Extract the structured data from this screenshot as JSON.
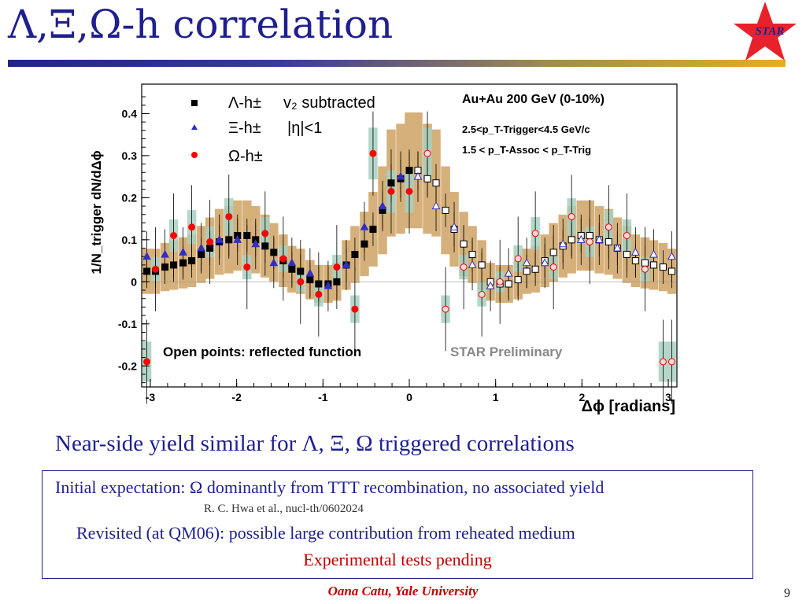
{
  "slide": {
    "title": "Λ,Ξ,Ω-h correlation",
    "logo_text": "STAR",
    "headline": "Near-side yield similar for Λ, Ξ, Ω triggered correlations",
    "box": {
      "line1": "Initial expectation: Ω dominantly from TTT recombination, no associated yield",
      "line2": "R. C. Hwa et al., nucl-th/0602024",
      "line3": "Revisited (at QM06): possible large contribution from reheated medium",
      "line4": "Experimental tests pending"
    },
    "footer": "Oana Catu, Yale University",
    "page_number": "9"
  },
  "colors": {
    "title": "#1f1f8f",
    "lambda": "#000000",
    "xi": "#3030c0",
    "omega": "#ff0000",
    "syst_band": "#d6b07a",
    "omega_syst": "#a8d0c0",
    "accent_red": "#c00000",
    "logo_star": "#e8212a"
  },
  "chart_data": {
    "type": "scatter",
    "ylabel": "1/N_trigger dN/dΔϕ",
    "xlabel": "Δϕ [radians]",
    "xlim": [
      -3.1,
      3.1
    ],
    "ylim": [
      -0.25,
      0.47
    ],
    "x_ticks": [
      -3,
      -2,
      -1,
      0,
      1,
      2,
      3
    ],
    "y_ticks": [
      -0.2,
      -0.1,
      0,
      0.1,
      0.2,
      0.3,
      0.4
    ],
    "y_tick_labels": [
      "-0.2",
      "-0.1",
      "0",
      "0.1",
      "0.2",
      "0.3",
      "0.4"
    ],
    "legend": [
      {
        "label": "Λ-h±",
        "marker": "square"
      },
      {
        "label": "Ξ-h±",
        "marker": "triangle"
      },
      {
        "label": "Ω-h±",
        "marker": "circle"
      }
    ],
    "annotations": {
      "v2": "v₂ subtracted",
      "eta": "|η|<1",
      "system": "Au+Au  200 GeV (0-10%)",
      "trig": "2.5<p_T-Trigger<4.5 GeV/c",
      "assoc": "1.5 < p_T-Assoc < p_T-Trig",
      "open_points": "Open points: reflected function",
      "preliminary": "STAR Preliminary"
    },
    "series": [
      {
        "name": "Λ-h±",
        "x": [
          -3.04,
          -2.94,
          -2.83,
          -2.73,
          -2.62,
          -2.52,
          -2.41,
          -2.31,
          -2.2,
          -2.09,
          -1.99,
          -1.88,
          -1.78,
          -1.67,
          -1.57,
          -1.46,
          -1.36,
          -1.26,
          -1.15,
          -1.05,
          -0.94,
          -0.84,
          -0.73,
          -0.63,
          -0.52,
          -0.42,
          -0.31,
          -0.21,
          -0.1,
          0.0,
          0.1,
          0.21,
          0.31,
          0.42,
          0.52,
          0.63,
          0.73,
          0.84,
          0.94,
          1.05,
          1.15,
          1.26,
          1.36,
          1.46,
          1.57,
          1.67,
          1.78,
          1.88,
          1.99,
          2.09,
          2.2,
          2.31,
          2.41,
          2.52,
          2.62,
          2.73,
          2.83,
          2.94,
          3.04
        ],
        "y": [
          0.025,
          0.025,
          0.035,
          0.04,
          0.045,
          0.05,
          0.065,
          0.08,
          0.095,
          0.1,
          0.11,
          0.11,
          0.1,
          0.085,
          0.07,
          0.05,
          0.03,
          0.025,
          0.005,
          -0.005,
          -0.005,
          0.0,
          0.04,
          0.065,
          0.09,
          0.125,
          0.17,
          0.235,
          0.245,
          0.265,
          0.265,
          0.245,
          0.235,
          0.17,
          0.125,
          0.09,
          0.065,
          0.04,
          0.0,
          -0.005,
          -0.005,
          0.005,
          0.025,
          0.03,
          0.05,
          0.07,
          0.085,
          0.1,
          0.11,
          0.11,
          0.1,
          0.095,
          0.08,
          0.065,
          0.05,
          0.045,
          0.04,
          0.035,
          0.025
        ],
        "err": [
          0.04,
          0.04,
          0.04,
          0.04,
          0.04,
          0.04,
          0.04,
          0.04,
          0.04,
          0.04,
          0.04,
          0.04,
          0.04,
          0.04,
          0.04,
          0.04,
          0.04,
          0.04,
          0.04,
          0.04,
          0.04,
          0.04,
          0.04,
          0.04,
          0.04,
          0.04,
          0.045,
          0.045,
          0.045,
          0.045,
          0.045,
          0.045,
          0.045,
          0.04,
          0.04,
          0.04,
          0.04,
          0.04,
          0.04,
          0.04,
          0.04,
          0.04,
          0.04,
          0.04,
          0.04,
          0.04,
          0.04,
          0.04,
          0.04,
          0.04,
          0.04,
          0.04,
          0.04,
          0.04,
          0.04,
          0.04,
          0.04,
          0.04,
          0.04
        ]
      },
      {
        "name": "Ξ-h±",
        "x": [
          -3.04,
          -2.83,
          -2.62,
          -2.41,
          -2.2,
          -1.99,
          -1.78,
          -1.57,
          -1.36,
          -1.15,
          -0.94,
          -0.73,
          -0.52,
          -0.31,
          -0.1,
          0.1,
          0.31,
          0.52,
          0.73,
          0.94,
          1.15,
          1.36,
          1.57,
          1.78,
          1.99,
          2.2,
          2.41,
          2.62,
          2.83,
          3.04
        ],
        "y": [
          0.06,
          0.065,
          0.07,
          0.08,
          0.1,
          0.1,
          0.09,
          0.045,
          0.045,
          0.02,
          -0.01,
          0.04,
          0.13,
          0.18,
          0.25,
          0.25,
          0.18,
          0.13,
          0.04,
          -0.01,
          0.02,
          0.045,
          0.045,
          0.09,
          0.1,
          0.1,
          0.08,
          0.07,
          0.065,
          0.06
        ],
        "err": [
          0.06,
          0.06,
          0.06,
          0.06,
          0.06,
          0.06,
          0.06,
          0.06,
          0.06,
          0.06,
          0.06,
          0.06,
          0.06,
          0.06,
          0.06,
          0.06,
          0.06,
          0.06,
          0.06,
          0.06,
          0.06,
          0.06,
          0.06,
          0.06,
          0.06,
          0.06,
          0.06,
          0.06,
          0.06,
          0.06
        ]
      },
      {
        "name": "Ω-h±",
        "x": [
          -3.04,
          -2.94,
          -2.73,
          -2.52,
          -2.31,
          -2.09,
          -1.88,
          -1.67,
          -1.46,
          -1.26,
          -1.05,
          -0.84,
          -0.63,
          -0.42,
          -0.21,
          0.0,
          0.21,
          0.42,
          0.63,
          0.84,
          1.05,
          1.26,
          1.46,
          1.67,
          1.88,
          2.09,
          2.31,
          2.52,
          2.73,
          2.94,
          3.04
        ],
        "y": [
          -0.19,
          0.03,
          0.11,
          0.13,
          0.095,
          0.155,
          0.035,
          0.115,
          0.055,
          0.0,
          -0.03,
          0.035,
          -0.065,
          0.305,
          0.215,
          0.215,
          0.305,
          -0.065,
          0.035,
          -0.03,
          0.0,
          0.055,
          0.115,
          0.035,
          0.155,
          0.095,
          0.13,
          0.11,
          0.03,
          -0.19,
          -0.19
        ],
        "err": [
          0.1,
          0.1,
          0.1,
          0.1,
          0.1,
          0.1,
          0.1,
          0.1,
          0.1,
          0.1,
          0.1,
          0.1,
          0.1,
          0.1,
          0.1,
          0.1,
          0.1,
          0.1,
          0.1,
          0.1,
          0.1,
          0.1,
          0.1,
          0.1,
          0.1,
          0.1,
          0.1,
          0.1,
          0.1,
          0.1,
          0.1
        ]
      }
    ]
  }
}
